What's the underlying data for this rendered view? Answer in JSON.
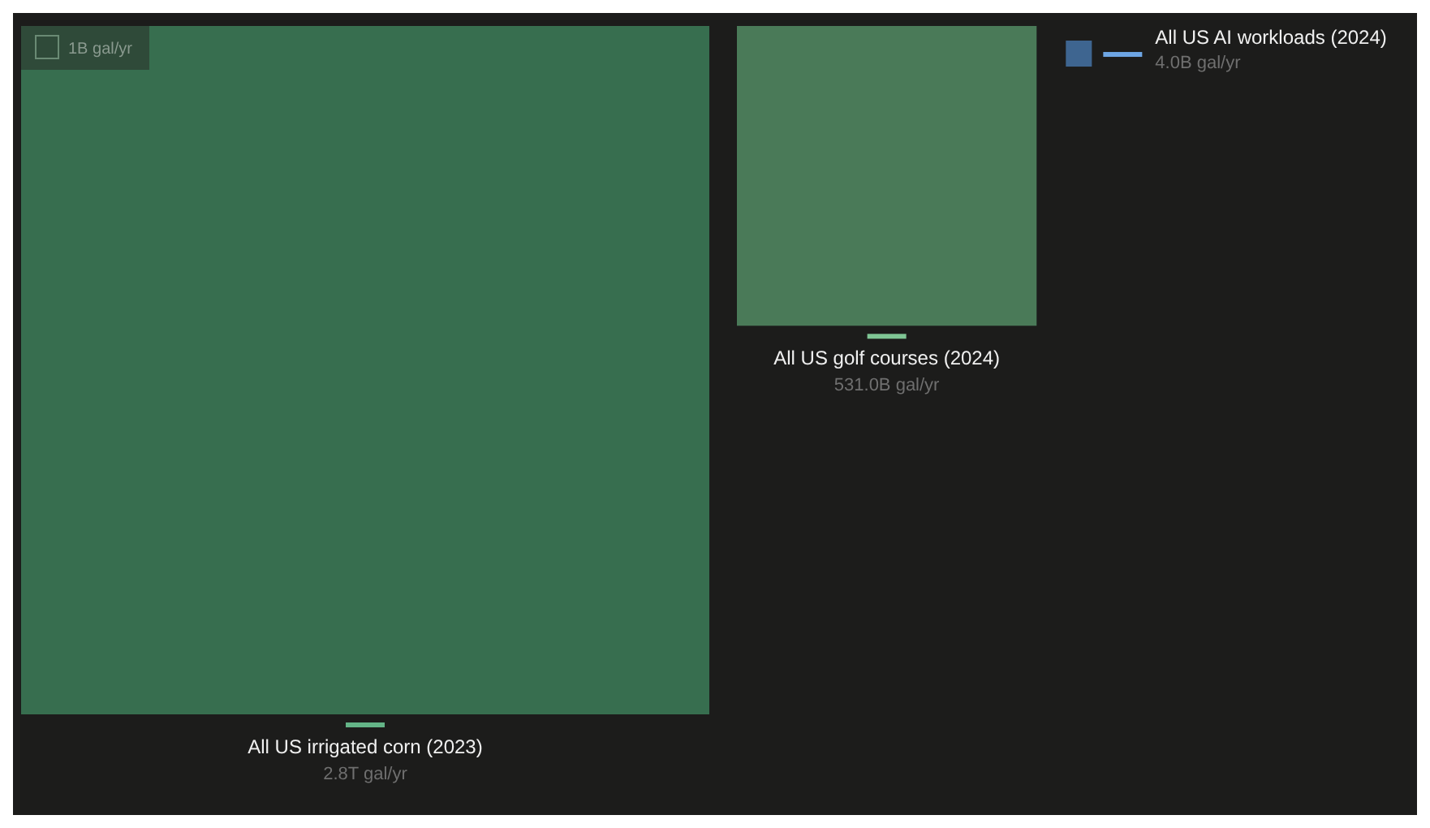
{
  "chart_data": {
    "type": "other",
    "categories": [
      "All US irrigated corn (2023)",
      "All US golf courses (2024)",
      "All US AI workloads (2024)"
    ],
    "values": [
      2800000000000,
      531000000000,
      4000000000
    ],
    "value_labels": [
      "2.8T gal/yr",
      "531.0B gal/yr",
      "4.0B gal/yr"
    ],
    "colors": [
      "#376e4f",
      "#4a7a58",
      "#3e6590"
    ],
    "annotations": [
      "1B gal/yr"
    ]
  }
}
